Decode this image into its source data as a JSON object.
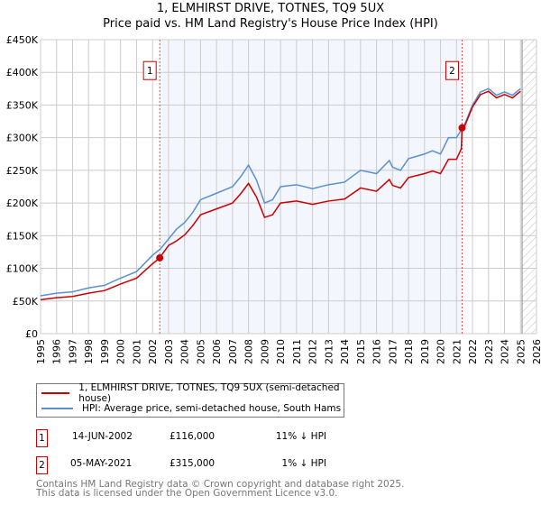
{
  "chart_data": {
    "type": "line",
    "title": "1, ELMHIRST DRIVE, TOTNES, TQ9 5UX",
    "subtitle": "Price paid vs. HM Land Registry's House Price Index (HPI)",
    "xlim": [
      1995,
      2026
    ],
    "ylim": [
      0,
      450000
    ],
    "yticks": [
      0,
      50000,
      100000,
      150000,
      200000,
      250000,
      300000,
      350000,
      400000,
      450000
    ],
    "ytick_labels": [
      "£0",
      "£50K",
      "£100K",
      "£150K",
      "£200K",
      "£250K",
      "£300K",
      "£350K",
      "£400K",
      "£450K"
    ],
    "xticks": [
      1995,
      1996,
      1997,
      1998,
      1999,
      2000,
      2001,
      2002,
      2003,
      2004,
      2005,
      2006,
      2007,
      2008,
      2009,
      2010,
      2011,
      2012,
      2013,
      2014,
      2015,
      2016,
      2017,
      2018,
      2019,
      2020,
      2021,
      2022,
      2023,
      2024,
      2025,
      2026
    ],
    "grid": true,
    "forecast_hatch_from": 2025.1,
    "shaded_range": [
      2002.45,
      2021.35
    ],
    "series": [
      {
        "name": "1, ELMHIRST DRIVE, TOTNES, TQ9 5UX (semi-detached house)",
        "color": "#cc0000",
        "x": [
          1995,
          1996,
          1997,
          1998,
          1999,
          2000,
          2001,
          2002,
          2002.45,
          2002.5,
          2003,
          2003.5,
          2004,
          2004.5,
          2005,
          2006,
          2007,
          2007.5,
          2008,
          2008.5,
          2009,
          2009.5,
          2010,
          2011,
          2012,
          2013,
          2014,
          2015,
          2016,
          2016.8,
          2017,
          2017.5,
          2018,
          2019,
          2019.5,
          2020,
          2020.5,
          2021,
          2021.3,
          2021.35,
          2021.5,
          2022,
          2022.5,
          2023,
          2023.5,
          2024,
          2024.5,
          2025
        ],
        "y": [
          52000,
          55000,
          57000,
          62000,
          66000,
          76000,
          85000,
          107000,
          116000,
          118000,
          135000,
          142000,
          151000,
          165000,
          182000,
          191000,
          200000,
          214000,
          230000,
          209000,
          178000,
          182000,
          200000,
          203000,
          198000,
          203000,
          206000,
          223000,
          218000,
          236000,
          227000,
          223000,
          239000,
          245000,
          249000,
          245000,
          267000,
          267000,
          283000,
          315000,
          317000,
          347000,
          366000,
          371000,
          361000,
          366000,
          361000,
          371000
        ]
      },
      {
        "name": "HPI: Average price, semi-detached house, South Hams",
        "color": "#5b8fd0",
        "x": [
          1995,
          1996,
          1997,
          1998,
          1999,
          2000,
          2001,
          2002,
          2002.5,
          2003,
          2003.5,
          2004,
          2004.5,
          2005,
          2006,
          2007,
          2007.5,
          2008,
          2008.5,
          2009,
          2009.5,
          2010,
          2011,
          2012,
          2013,
          2014,
          2015,
          2016,
          2016.8,
          2017,
          2017.5,
          2018,
          2019,
          2019.5,
          2020,
          2020.5,
          2021,
          2021.5,
          2022,
          2022.5,
          2023,
          2023.5,
          2024,
          2024.5,
          2025
        ],
        "y": [
          58000,
          62000,
          64000,
          70000,
          74000,
          85000,
          95000,
          120000,
          130000,
          145000,
          160000,
          170000,
          185000,
          205000,
          215000,
          225000,
          240000,
          258000,
          235000,
          200000,
          205000,
          225000,
          228000,
          222000,
          228000,
          232000,
          250000,
          245000,
          265000,
          255000,
          250000,
          268000,
          275000,
          280000,
          275000,
          300000,
          300000,
          320000,
          350000,
          370000,
          375000,
          365000,
          370000,
          365000,
          375000
        ]
      }
    ],
    "sales": [
      {
        "label": "1",
        "x": 2002.45,
        "y": 116000,
        "date": "14-JUN-2002",
        "price": "£116,000",
        "hpi_diff": "11% ↓ HPI"
      },
      {
        "label": "2",
        "x": 2021.35,
        "y": 315000,
        "date": "05-MAY-2021",
        "price": "£315,000",
        "hpi_diff": "1% ↓ HPI"
      }
    ]
  },
  "footer": {
    "line1": "Contains HM Land Registry data © Crown copyright and database right 2025.",
    "line2": "This data is licensed under the Open Government Licence v3.0."
  }
}
